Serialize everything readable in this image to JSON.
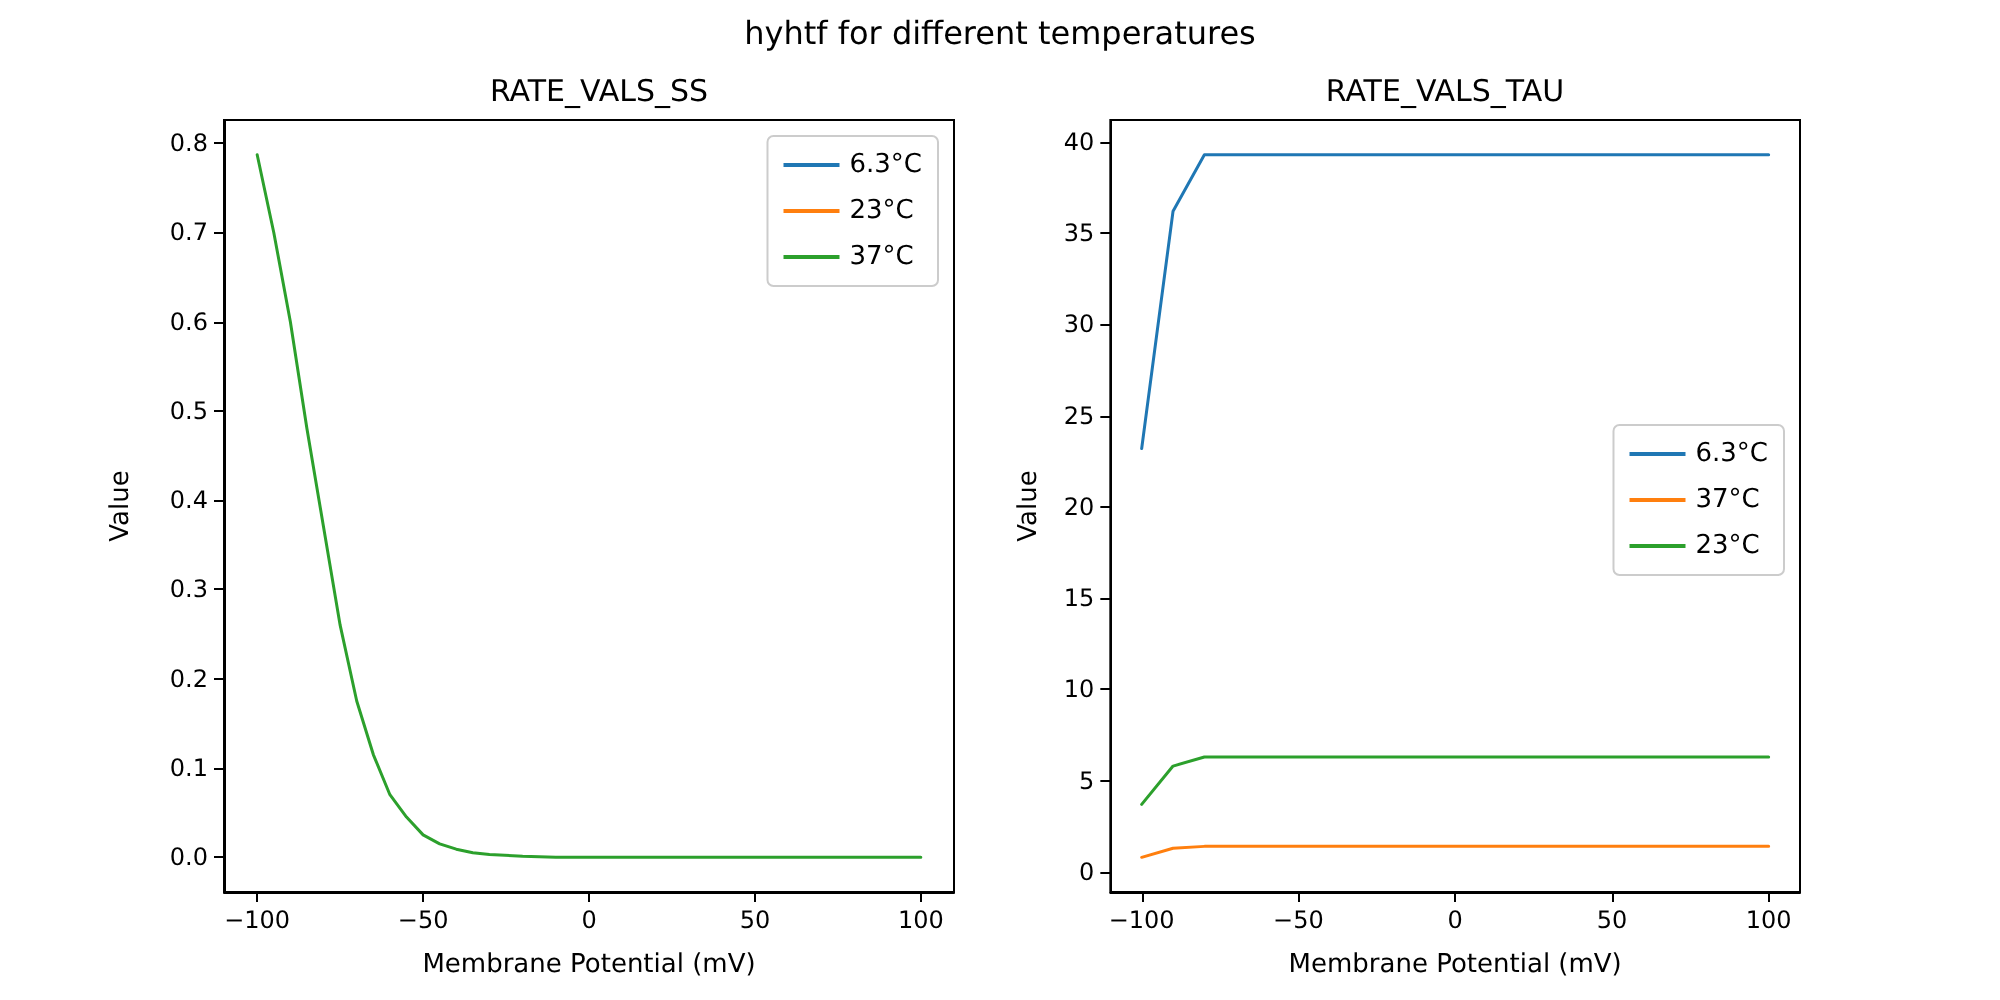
{
  "chart_data": [
    {
      "type": "line",
      "title": "RATE_VALS_SS",
      "xlabel": "Membrane Potential (mV)",
      "ylabel": "Value",
      "annotations": [
        "hyhtf for different temperatures"
      ],
      "x": [
        -100,
        -95,
        -90,
        -85,
        -80,
        -75,
        -70,
        -65,
        -60,
        -55,
        -50,
        -45,
        -40,
        -35,
        -30,
        -20,
        -10,
        0,
        50,
        100
      ],
      "series": [
        {
          "name": "6.3°C",
          "color": "#1f77b4",
          "values": [
            null,
            null,
            null,
            null,
            null,
            null,
            null,
            null,
            null,
            null,
            null,
            null,
            null,
            null,
            null,
            null,
            null,
            null,
            null,
            null
          ]
        },
        {
          "name": "23°C",
          "color": "#ff7f0e",
          "values": [
            null,
            null,
            null,
            null,
            null,
            null,
            null,
            null,
            null,
            null,
            null,
            null,
            null,
            null,
            null,
            null,
            null,
            null,
            null,
            null
          ]
        },
        {
          "name": "37°C",
          "color": "#2ca02c",
          "values": [
            0.787,
            0.7,
            0.6,
            0.48,
            0.37,
            0.26,
            0.175,
            0.115,
            0.07,
            0.045,
            0.025,
            0.015,
            0.009,
            0.005,
            0.003,
            0.001,
            0,
            0,
            0,
            0
          ]
        }
      ],
      "xlim": [
        -110,
        110
      ],
      "xticks": [
        -100,
        -50,
        0,
        50,
        100
      ],
      "ylim": [
        -0.039,
        0.826
      ],
      "yticks": [
        {
          "value": 0,
          "label": "0.0"
        },
        0.1,
        0.2,
        0.3,
        0.4,
        0.5,
        0.6,
        0.7,
        0.8
      ],
      "legend": "top right",
      "grid": false,
      "marker": "none",
      "line_style": "solid"
    },
    {
      "type": "line",
      "title": "RATE_VALS_TAU",
      "xlabel": "Membrane Potential (mV)",
      "ylabel": "Value",
      "x": [
        -100,
        -90,
        -80,
        0,
        100
      ],
      "series": [
        {
          "name": "6.3°C",
          "color": "#1f77b4",
          "values": [
            23.2,
            36.2,
            39.3,
            39.3,
            39.3
          ]
        },
        {
          "name": "37°C",
          "color": "#ff7f0e",
          "values": [
            0.8,
            1.3,
            1.4,
            1.4,
            1.4
          ]
        },
        {
          "name": "23°C",
          "color": "#2ca02c",
          "values": [
            3.7,
            5.8,
            6.3,
            6.3,
            6.3
          ]
        }
      ],
      "xlim": [
        -110,
        110
      ],
      "xticks": [
        -100,
        -50,
        0,
        50,
        100
      ],
      "ylim": [
        -1.1,
        41.2
      ],
      "yticks": [
        0,
        5,
        10,
        15,
        20,
        25,
        30,
        35,
        40
      ],
      "legend": "right",
      "grid": false,
      "marker": "none",
      "line_style": "solid"
    }
  ]
}
